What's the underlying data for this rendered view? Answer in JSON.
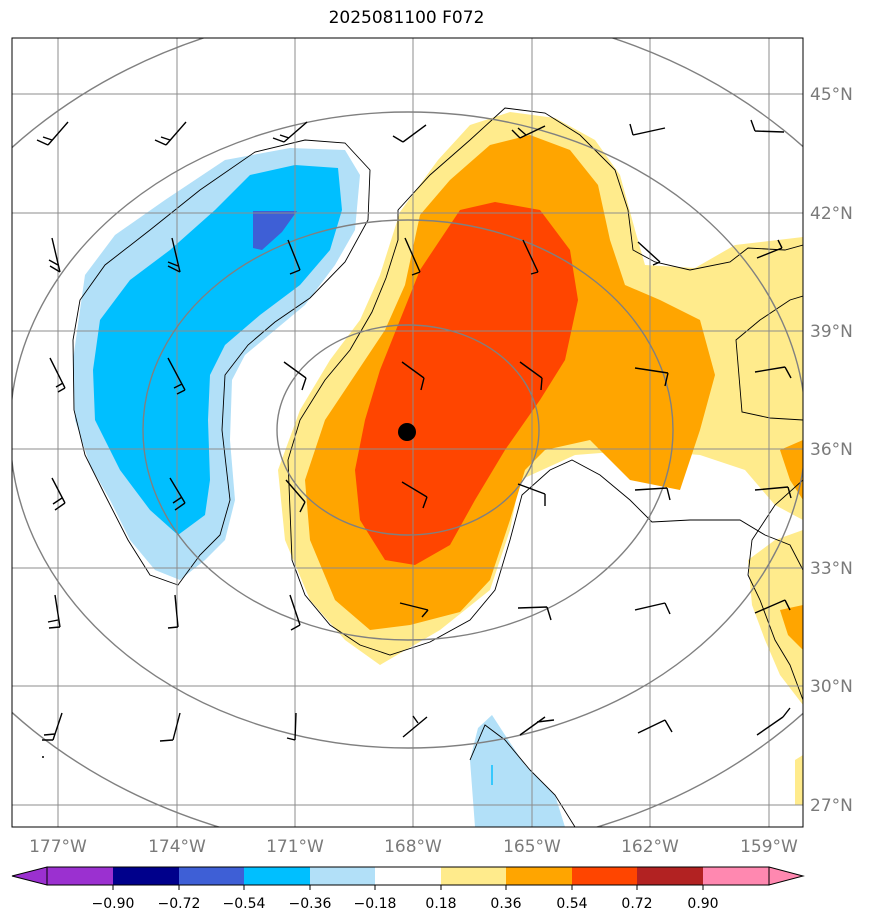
{
  "title": "2025081100 F072",
  "map": {
    "lon_labels": [
      "177°W",
      "174°W",
      "171°W",
      "168°W",
      "165°W",
      "162°W",
      "159°W"
    ],
    "lat_labels": [
      "45°N",
      "42°N",
      "39°N",
      "36°N",
      "33°N",
      "30°N",
      "27°N"
    ],
    "lon_range": [
      -178.2,
      -158.2
    ],
    "lat_range": [
      26.5,
      46.4
    ],
    "center_marker": {
      "lon": -168.0,
      "lat": 36.4
    },
    "wind_barbs": "present",
    "grid": true
  },
  "colorbar": {
    "ticks": [
      "−0.90",
      "−0.72",
      "−0.54",
      "−0.36",
      "−0.18",
      "0.18",
      "0.36",
      "0.54",
      "0.72",
      "0.90"
    ],
    "colors": {
      "under": "#9b30d0",
      "bins": [
        "#00008b",
        "#3e5fd6",
        "#00bfff",
        "#b2e0f8",
        "#ffffff",
        "#ffeb8c",
        "#ffa500",
        "#ff4500",
        "#b22222"
      ],
      "over": "#ff88b0"
    }
  },
  "colors": {
    "pos_light": "#ffeb8c",
    "pos_mid": "#ffa500",
    "pos_strong": "#ff4500",
    "neg_light": "#b2e0f8",
    "neg_mid": "#00bfff",
    "neg_strong": "#3e5fd6"
  }
}
